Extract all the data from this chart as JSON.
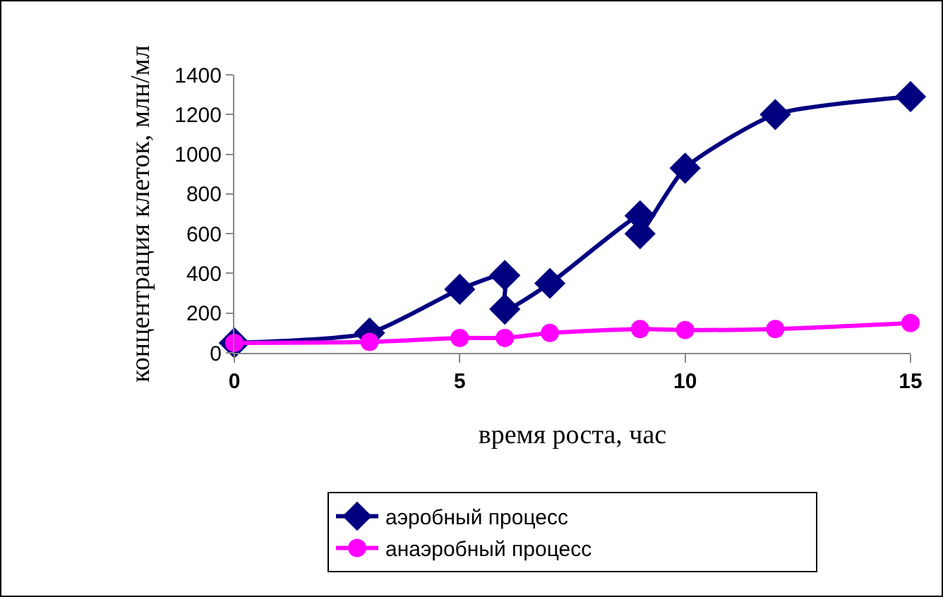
{
  "chart_data": {
    "type": "line",
    "xlabel": "время роста, час",
    "ylabel": "концентрация клеток, млн/мл",
    "xlim": [
      0,
      15
    ],
    "xticks": [
      0,
      5,
      10,
      15
    ],
    "ylim": [
      0,
      1400
    ],
    "yticks": [
      0,
      200,
      400,
      600,
      800,
      1000,
      1200,
      1400
    ],
    "grid": false,
    "legend": "bottom",
    "series": [
      {
        "name": "аэробный процесс",
        "color": "#000080",
        "marker": "diamond",
        "x": [
          0,
          3,
          5,
          6,
          6,
          7,
          9,
          9,
          10,
          12,
          15
        ],
        "values": [
          50,
          100,
          320,
          390,
          220,
          350,
          690,
          600,
          930,
          1200,
          1290
        ]
      },
      {
        "name": "анаэробный процесс",
        "color": "#ff00ff",
        "marker": "circle",
        "x": [
          0,
          3,
          5,
          6,
          7,
          9,
          10,
          12,
          15
        ],
        "values": [
          50,
          55,
          75,
          75,
          100,
          120,
          115,
          120,
          150
        ]
      }
    ]
  }
}
